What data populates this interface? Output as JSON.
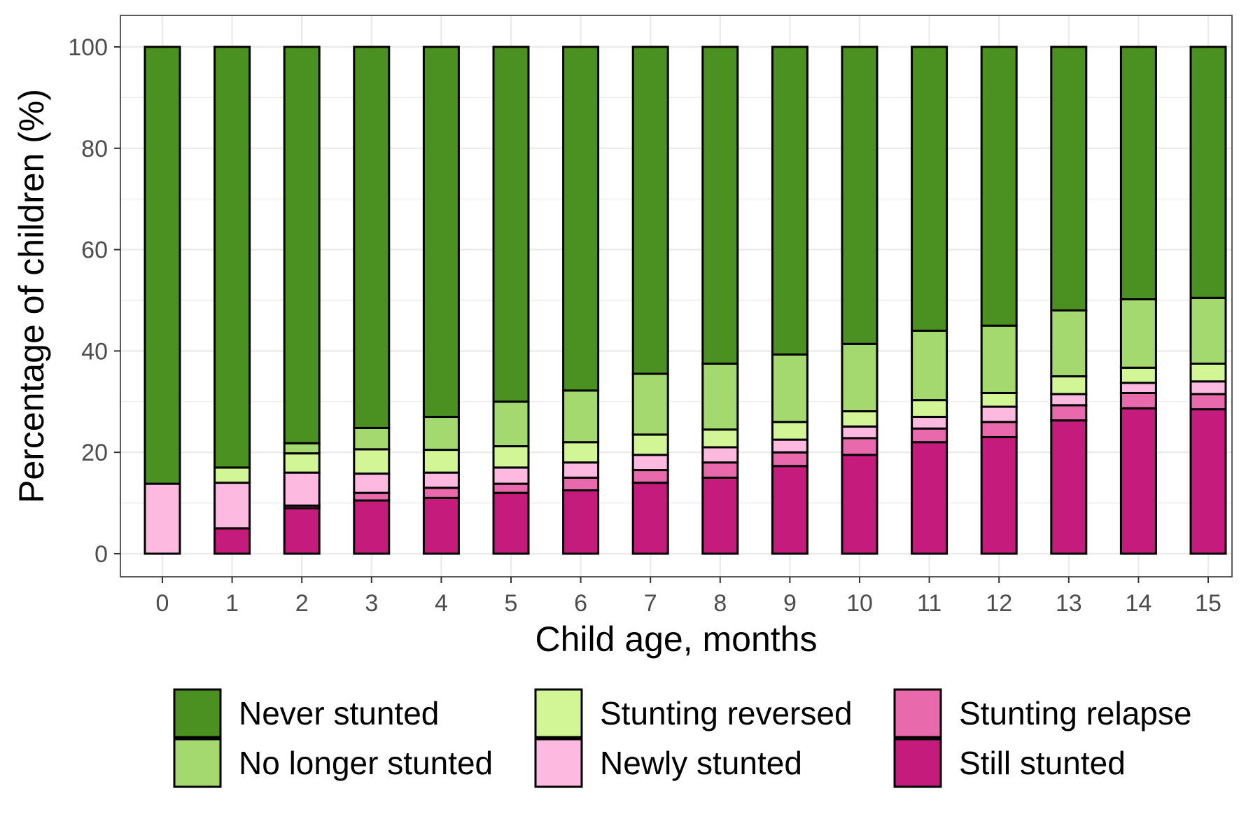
{
  "chart_data": {
    "type": "bar",
    "stacked": true,
    "title": "",
    "xlabel": "Child age, months",
    "ylabel": "Percentage of children (%)",
    "ylim": [
      0,
      100
    ],
    "yticks": [
      0,
      20,
      40,
      60,
      80,
      100
    ],
    "grid": true,
    "legend_position": "bottom",
    "categories": [
      "0",
      "1",
      "2",
      "3",
      "4",
      "5",
      "6",
      "7",
      "8",
      "9",
      "10",
      "11",
      "12",
      "13",
      "14",
      "15"
    ],
    "series": [
      {
        "name": "Still stunted",
        "color": "#C51B7D",
        "values": [
          0,
          5,
          9,
          10.5,
          11,
          12,
          12.5,
          14,
          15,
          17.3,
          19.5,
          22,
          23,
          26.3,
          28.7,
          28.5
        ]
      },
      {
        "name": "Stunting relapse",
        "color": "#E869AC",
        "values": [
          0,
          0,
          0.5,
          1.5,
          2,
          1.8,
          2.5,
          2.5,
          3,
          2.7,
          3.3,
          2.7,
          3,
          3,
          3,
          3
        ]
      },
      {
        "name": "Newly stunted",
        "color": "#FDB9DF",
        "values": [
          13.8,
          9,
          6.5,
          3.8,
          3,
          3.2,
          3,
          3,
          3,
          2.5,
          2.3,
          2.3,
          3,
          2.2,
          2,
          2.5
        ]
      },
      {
        "name": "Stunting reversed",
        "color": "#D2F596",
        "values": [
          0,
          3,
          3.8,
          4.8,
          4.5,
          4.2,
          4,
          4,
          3.5,
          3.5,
          3,
          3.3,
          2.7,
          3.5,
          3,
          3.5
        ]
      },
      {
        "name": "No longer stunted",
        "color": "#A4D970",
        "values": [
          0,
          0,
          2,
          4.2,
          6.5,
          8.8,
          10.2,
          12,
          13,
          13.3,
          13.3,
          13.7,
          13.3,
          13,
          13.5,
          13
        ]
      },
      {
        "name": "Never stunted",
        "color": "#4B9122",
        "values": [
          86.2,
          83,
          78.2,
          75.2,
          73,
          70,
          67.8,
          64.5,
          62.5,
          60.7,
          58.6,
          56,
          55,
          52,
          49.8,
          49.5
        ]
      }
    ],
    "legend_order": [
      "Never stunted",
      "No longer stunted",
      "Stunting reversed",
      "Newly stunted",
      "Stunting relapse",
      "Still stunted"
    ]
  }
}
